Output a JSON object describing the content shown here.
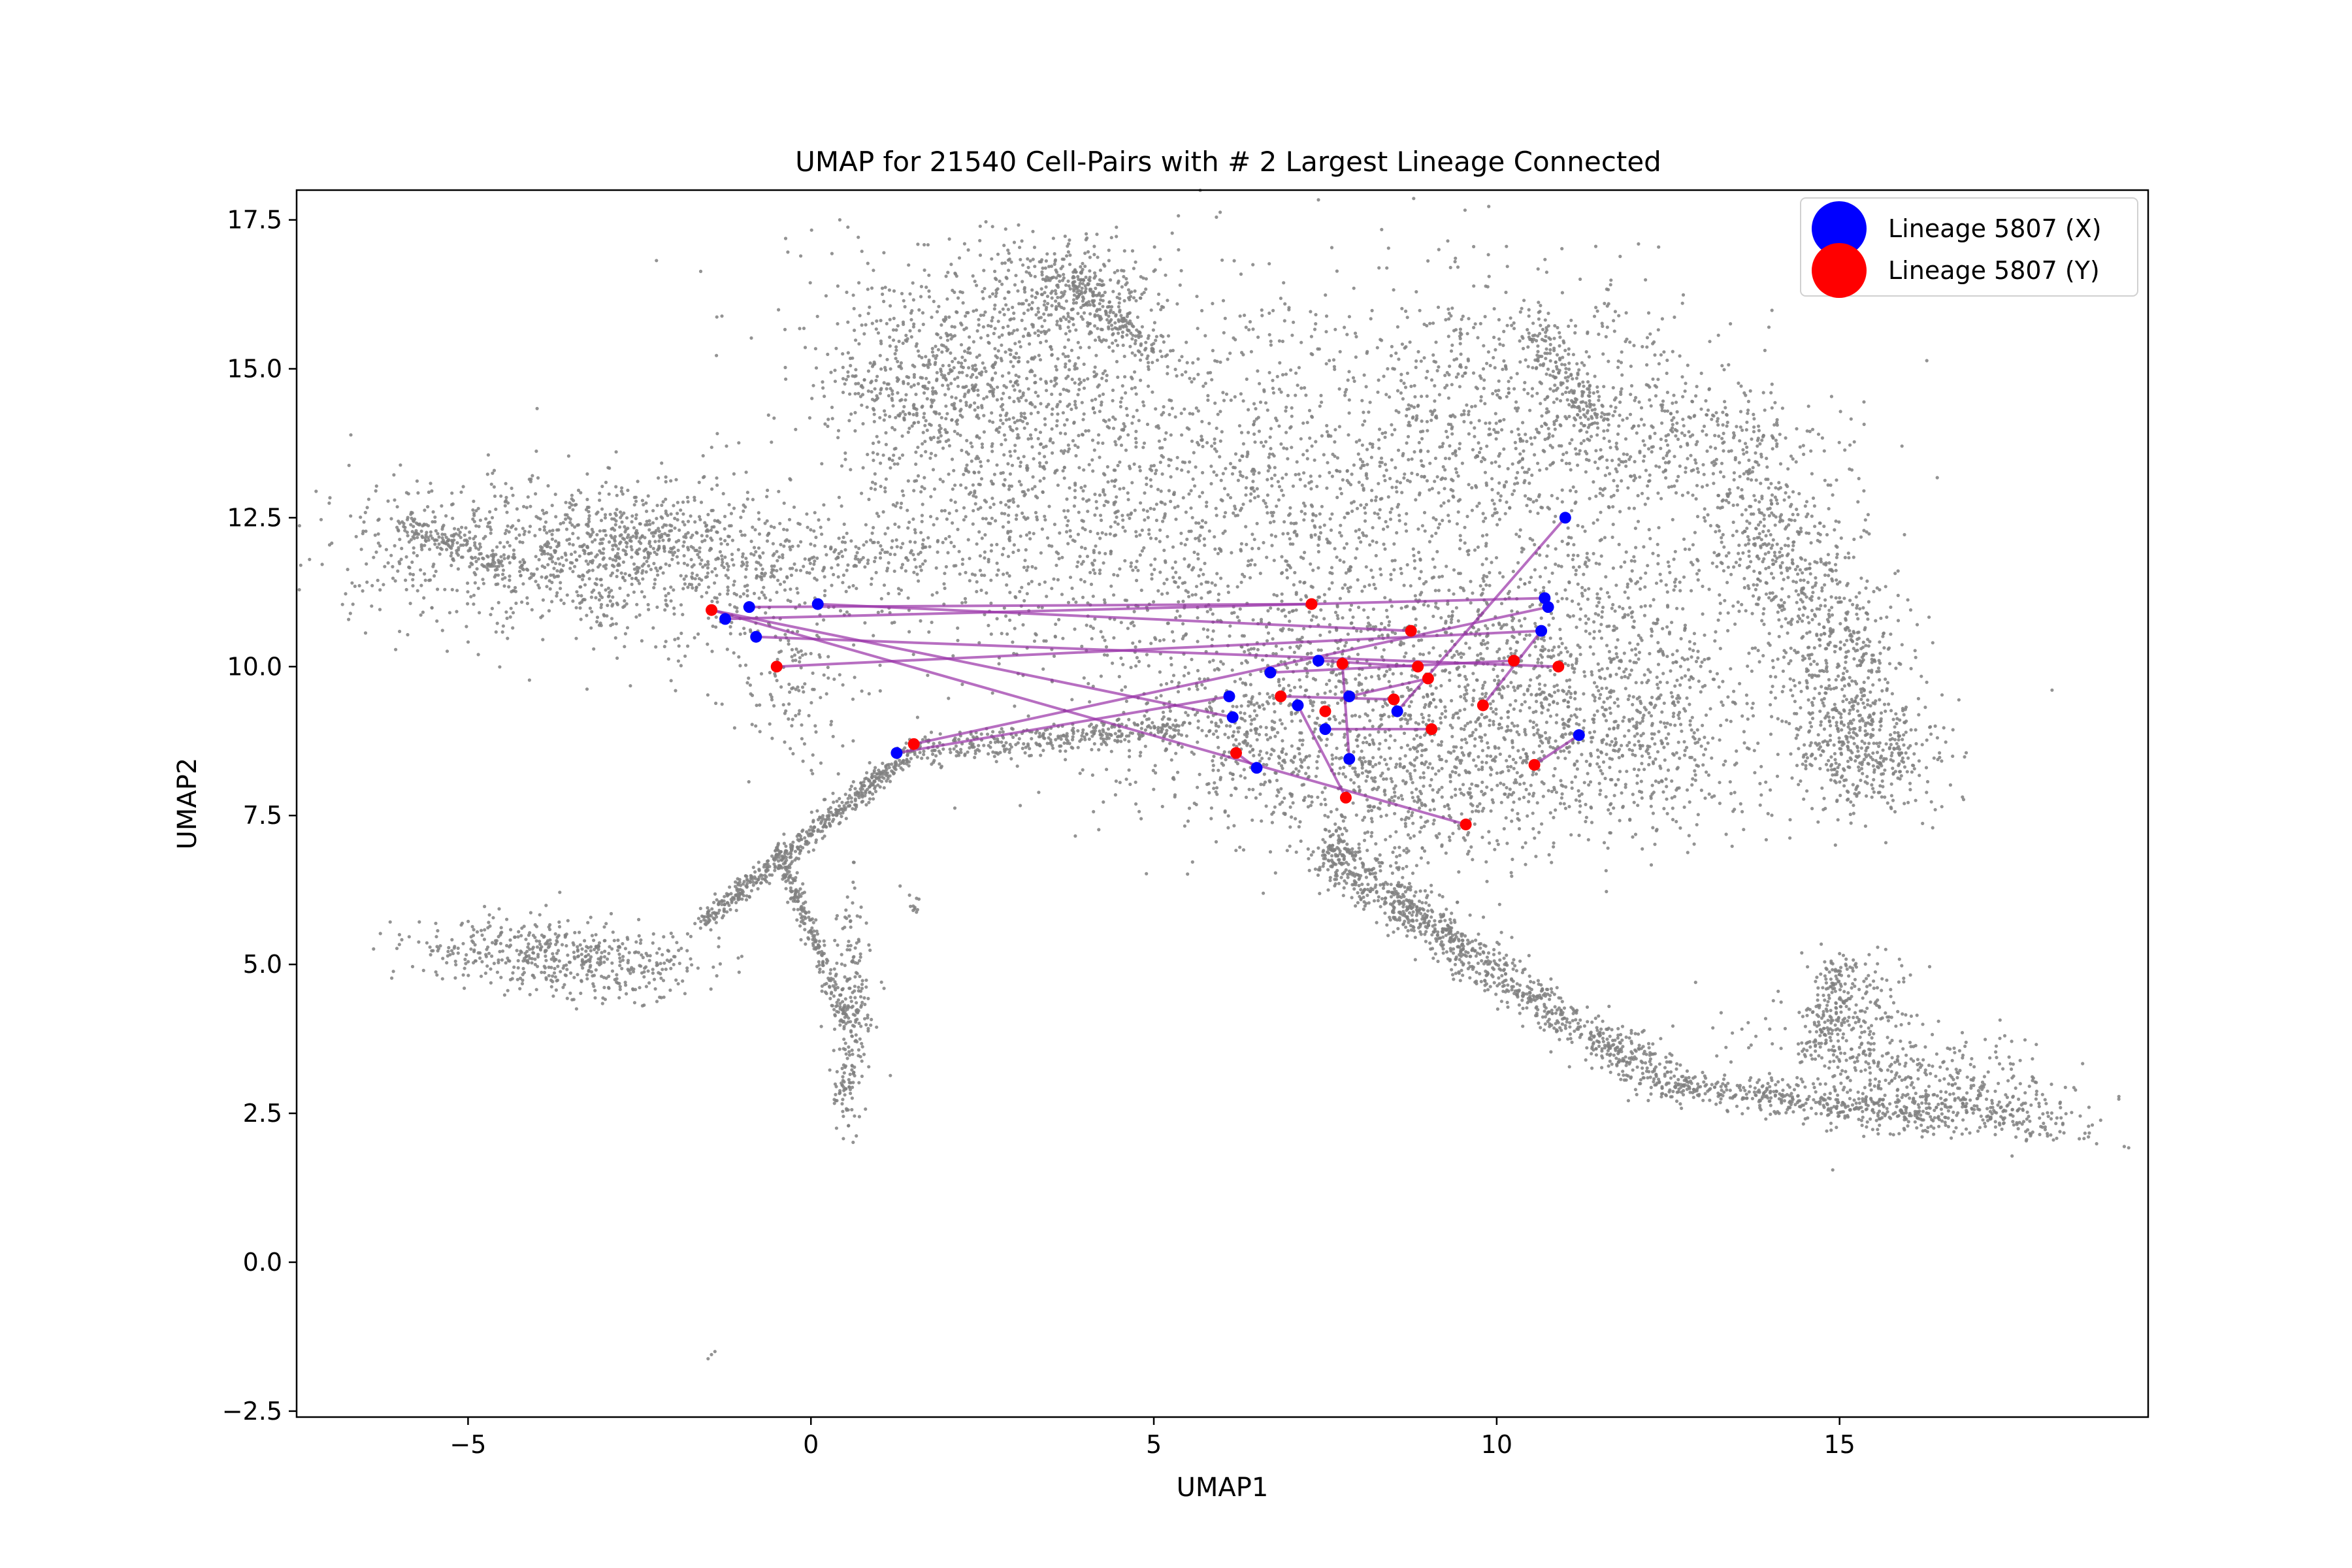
{
  "chart_data": {
    "type": "scatter",
    "title": "UMAP for 21540 Cell-Pairs with # 2 Largest Lineage Connected",
    "xlabel": "UMAP1",
    "ylabel": "UMAP2",
    "xlim": [
      -7.5,
      19.5
    ],
    "ylim": [
      -2.6,
      18.0
    ],
    "x_ticks": [
      -5,
      0,
      5,
      10,
      15
    ],
    "x_tick_labels": [
      "−5",
      "0",
      "5",
      "10",
      "15"
    ],
    "y_ticks": [
      -2.5,
      0.0,
      2.5,
      5.0,
      7.5,
      10.0,
      12.5,
      15.0,
      17.5
    ],
    "y_tick_labels": [
      "−2.5",
      "0.0",
      "2.5",
      "5.0",
      "7.5",
      "10.0",
      "12.5",
      "15.0",
      "17.5"
    ],
    "grid": false,
    "legend_position": "top-right",
    "background_color": "#808080",
    "pair_line_color": "#9932a8",
    "series": [
      {
        "name": "Lineage 5807 (X)",
        "color": "#0000ff",
        "x": [
          -0.9,
          0.1,
          -1.25,
          -0.8,
          1.25,
          6.1,
          6.15,
          6.5,
          6.7,
          7.1,
          7.4,
          7.5,
          7.85,
          7.85,
          8.55,
          10.65,
          10.7,
          10.75,
          11.0,
          11.2
        ],
        "y": [
          11.0,
          11.05,
          10.8,
          10.5,
          8.55,
          9.5,
          9.15,
          8.3,
          9.9,
          9.35,
          10.1,
          8.95,
          9.5,
          8.45,
          9.25,
          10.6,
          11.15,
          11.0,
          12.5,
          8.85
        ]
      },
      {
        "name": "Lineage 5807 (Y)",
        "color": "#ff0000",
        "x": [
          -1.45,
          -0.5,
          1.5,
          6.2,
          6.85,
          7.3,
          7.5,
          7.75,
          7.8,
          8.5,
          8.75,
          8.85,
          9.0,
          9.05,
          9.55,
          9.8,
          10.25,
          10.55,
          10.9
        ],
        "y": [
          10.95,
          10.0,
          8.7,
          8.55,
          9.5,
          11.05,
          9.25,
          10.05,
          7.8,
          9.45,
          10.6,
          10.0,
          9.8,
          8.95,
          7.35,
          9.35,
          10.1,
          8.35,
          10.0
        ]
      }
    ],
    "pairs": [
      [
        [
          -0.9,
          11.0
        ],
        [
          7.3,
          11.05
        ]
      ],
      [
        [
          0.1,
          11.05
        ],
        [
          8.75,
          10.6
        ]
      ],
      [
        [
          -1.25,
          10.8
        ],
        [
          10.7,
          11.15
        ]
      ],
      [
        [
          -0.8,
          10.5
        ],
        [
          10.9,
          10.0
        ]
      ],
      [
        [
          -0.5,
          10.0
        ],
        [
          10.65,
          10.6
        ]
      ],
      [
        [
          -1.45,
          10.95
        ],
        [
          6.15,
          9.15
        ]
      ],
      [
        [
          -1.45,
          10.95
        ],
        [
          9.55,
          7.35
        ]
      ],
      [
        [
          1.25,
          8.55
        ],
        [
          6.1,
          9.5
        ]
      ],
      [
        [
          1.5,
          8.7
        ],
        [
          10.75,
          11.0
        ]
      ],
      [
        [
          6.7,
          9.9
        ],
        [
          10.25,
          10.1
        ]
      ],
      [
        [
          6.5,
          8.3
        ],
        [
          6.2,
          8.55
        ]
      ],
      [
        [
          7.1,
          9.35
        ],
        [
          7.8,
          7.8
        ]
      ],
      [
        [
          7.4,
          10.1
        ],
        [
          8.85,
          10.0
        ]
      ],
      [
        [
          7.5,
          8.95
        ],
        [
          9.05,
          8.95
        ]
      ],
      [
        [
          7.85,
          8.45
        ],
        [
          7.75,
          10.05
        ]
      ],
      [
        [
          7.85,
          9.5
        ],
        [
          9.0,
          9.8
        ]
      ],
      [
        [
          8.55,
          9.25
        ],
        [
          11.0,
          12.5
        ]
      ],
      [
        [
          9.8,
          9.35
        ],
        [
          10.65,
          10.6
        ]
      ],
      [
        [
          10.55,
          8.35
        ],
        [
          11.2,
          8.85
        ]
      ],
      [
        [
          6.85,
          9.5
        ],
        [
          8.5,
          9.45
        ]
      ]
    ]
  }
}
